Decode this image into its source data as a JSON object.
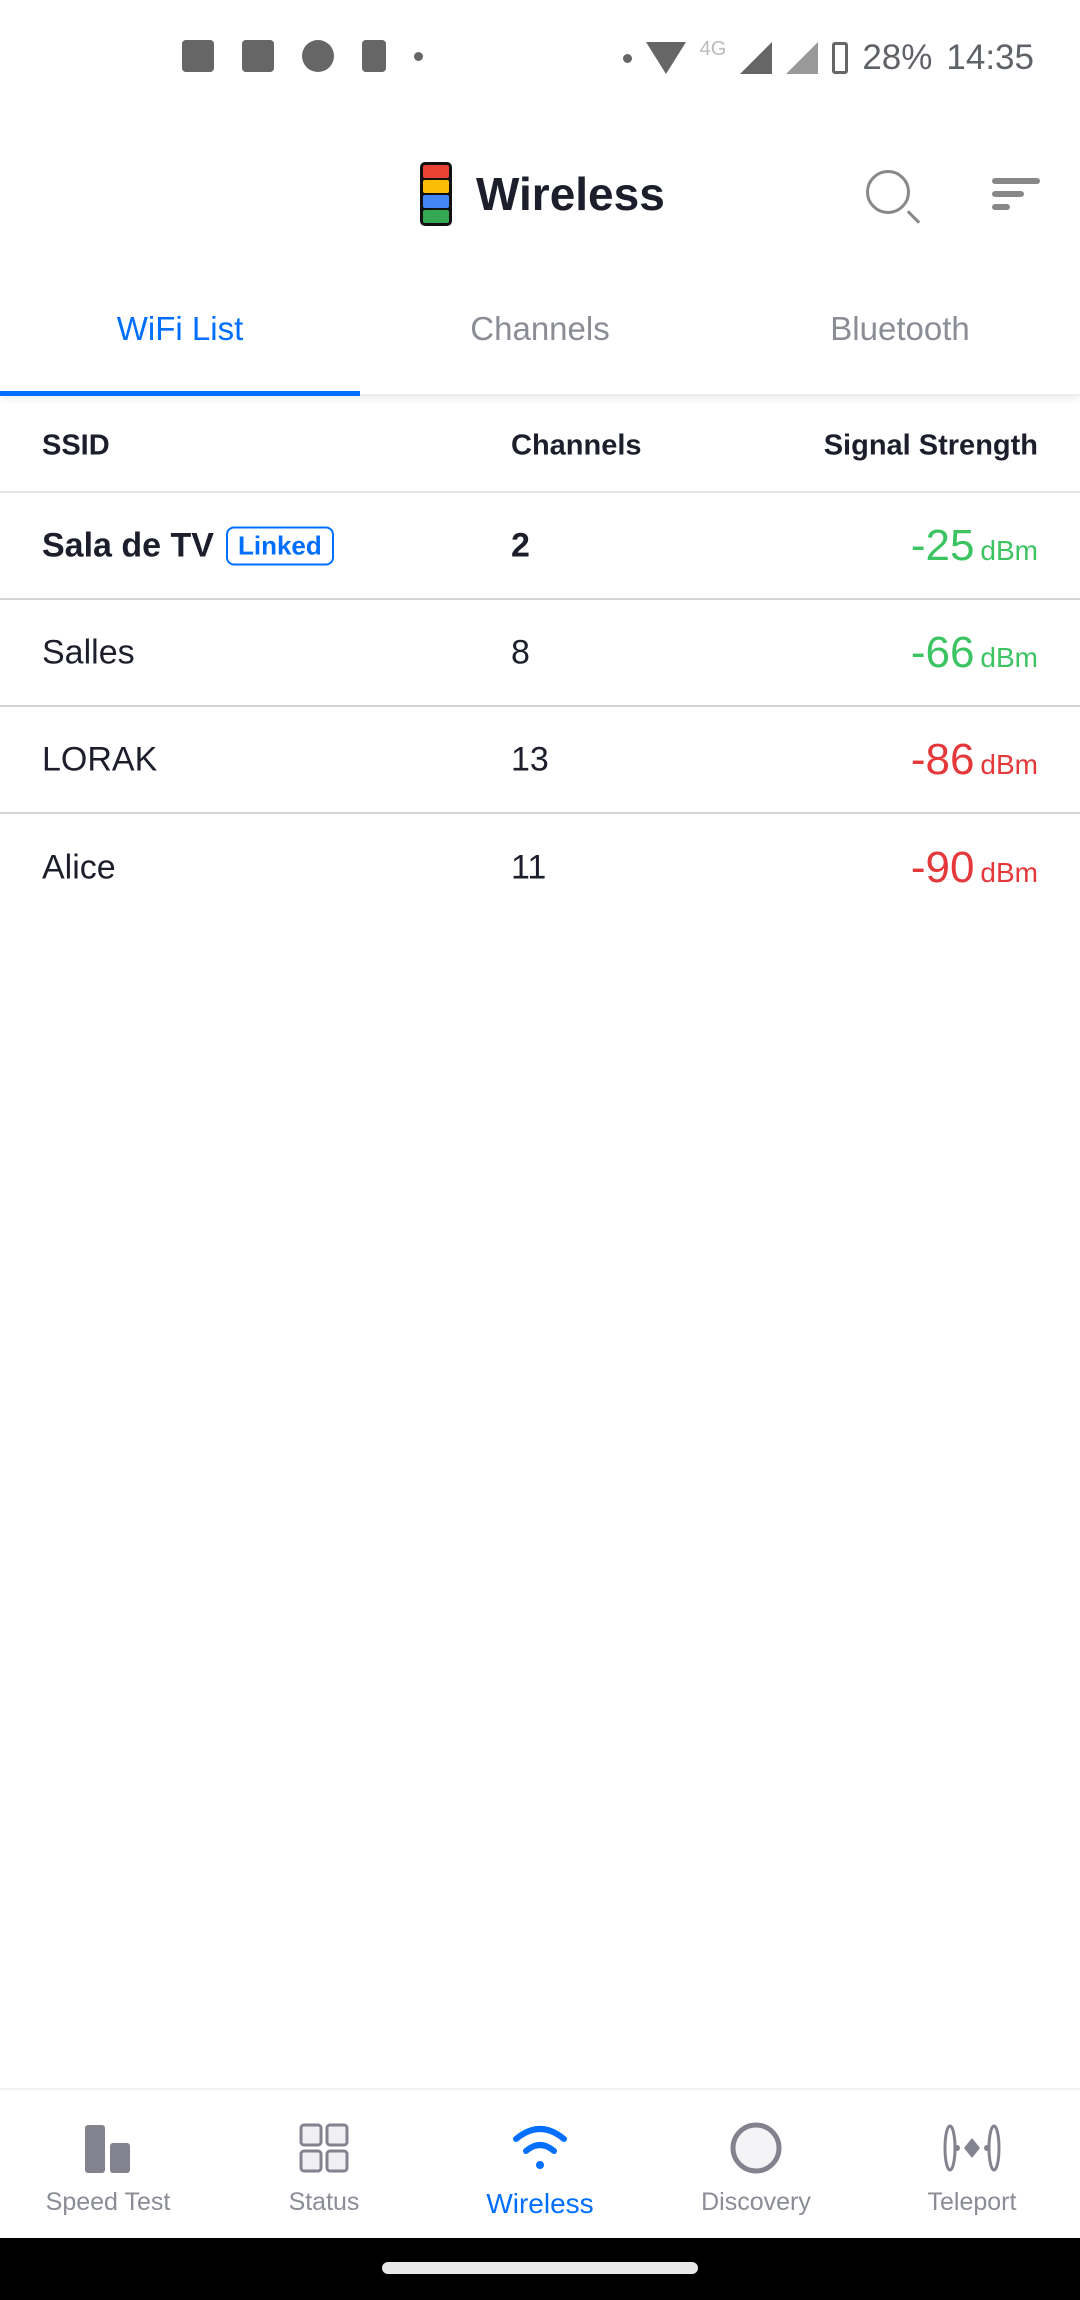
{
  "status_bar": {
    "network": "4G",
    "battery": "28%",
    "time": "14:35"
  },
  "header": {
    "title": "Wireless"
  },
  "tabs": [
    {
      "label": "WiFi List",
      "active": true
    },
    {
      "label": "Channels"
    },
    {
      "label": "Bluetooth"
    }
  ],
  "table": {
    "columns": [
      "SSID",
      "Channels",
      "Signal Strength"
    ],
    "rows": [
      {
        "ssid": "Sala de TV",
        "badge": "Linked",
        "channel": "2",
        "signal": "-25",
        "unit": "dBm",
        "color": "#3cc463"
      },
      {
        "ssid": "Salles",
        "channel": "8",
        "signal": "-66",
        "unit": "dBm",
        "color": "#3cc463"
      },
      {
        "ssid": "LORAK",
        "channel": "13",
        "signal": "-86",
        "unit": "dBm",
        "color": "#e5383b"
      },
      {
        "ssid": "Alice",
        "channel": "11",
        "signal": "-90",
        "unit": "dBm",
        "color": "#e5383b"
      }
    ]
  },
  "bottom_nav": [
    {
      "label": "Speed Test"
    },
    {
      "label": "Status"
    },
    {
      "label": "Wireless",
      "active": true
    },
    {
      "label": "Discovery"
    },
    {
      "label": "Teleport"
    }
  ],
  "colors": {
    "accent": "#006fff",
    "good": "#3cc463",
    "bad": "#e5383b"
  }
}
